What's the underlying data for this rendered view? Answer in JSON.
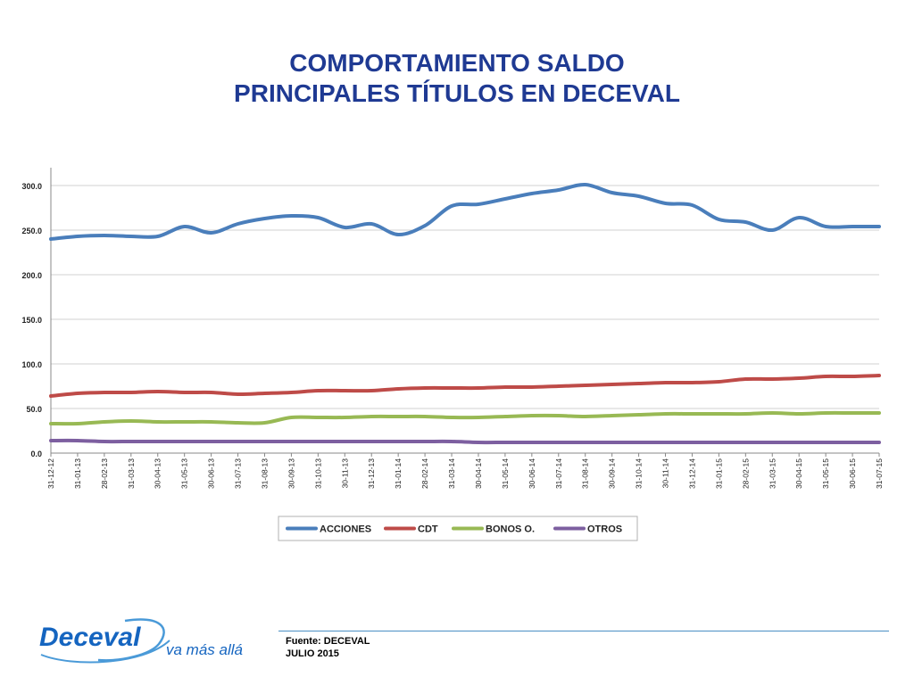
{
  "header": {
    "title_line1": "COMPORTAMIENTO SALDO",
    "title_line2": "PRINCIPALES TÍTULOS EN DECEVAL"
  },
  "footer": {
    "source": "Fuente: DECEVAL",
    "date": "JULIO 2015",
    "brand": "Deceval",
    "tagline": "va más allá"
  },
  "colors": {
    "title": "#1f3a93",
    "brand": "#1565c0",
    "accent": "#4a8fc4"
  },
  "chart_data": {
    "type": "line",
    "title": "",
    "xlabel": "",
    "ylabel": "",
    "ylim": [
      0,
      320
    ],
    "yticks": [
      0,
      50,
      100,
      150,
      200,
      250,
      300
    ],
    "ytick_labels": [
      "0.0",
      "50.0",
      "100.0",
      "150.0",
      "200.0",
      "250.0",
      "300.0"
    ],
    "grid": true,
    "legend": "bottom",
    "categories": [
      "31-12-12",
      "31-01-13",
      "28-02-13",
      "31-03-13",
      "30-04-13",
      "31-05-13",
      "30-06-13",
      "31-07-13",
      "31-08-13",
      "30-09-13",
      "31-10-13",
      "30-11-13",
      "31-12-13",
      "31-01-14",
      "28-02-14",
      "31-03-14",
      "30-04-14",
      "31-05-14",
      "30-06-14",
      "31-07-14",
      "31-08-14",
      "30-09-14",
      "31-10-14",
      "30-11-14",
      "31-12-14",
      "31-01-15",
      "28-02-15",
      "31-03-15",
      "30-04-15",
      "31-05-15",
      "30-06-15",
      "31-07-15"
    ],
    "series": [
      {
        "name": "ACCIONES",
        "color": "#4a7ebb",
        "values": [
          240,
          243,
          244,
          243,
          243,
          254,
          247,
          257,
          263,
          266,
          264,
          253,
          257,
          245,
          255,
          277,
          279,
          285,
          291,
          295,
          301,
          292,
          288,
          280,
          278,
          262,
          259,
          250,
          264,
          254,
          254,
          254
        ]
      },
      {
        "name": "CDT",
        "color": "#be4b48",
        "values": [
          64,
          67,
          68,
          68,
          69,
          68,
          68,
          66,
          67,
          68,
          70,
          70,
          70,
          72,
          73,
          73,
          73,
          74,
          74,
          75,
          76,
          77,
          78,
          79,
          79,
          80,
          83,
          83,
          84,
          86,
          86,
          87
        ]
      },
      {
        "name": "BONOS O.",
        "color": "#98b954",
        "values": [
          33,
          33,
          35,
          36,
          35,
          35,
          35,
          34,
          34,
          40,
          40,
          40,
          41,
          41,
          41,
          40,
          40,
          41,
          42,
          42,
          41,
          42,
          43,
          44,
          44,
          44,
          44,
          45,
          44,
          45,
          45,
          45
        ]
      },
      {
        "name": "OTROS",
        "color": "#7d5fa0",
        "values": [
          14,
          14,
          13,
          13,
          13,
          13,
          13,
          13,
          13,
          13,
          13,
          13,
          13,
          13,
          13,
          13,
          12,
          12,
          12,
          12,
          12,
          12,
          12,
          12,
          12,
          12,
          12,
          12,
          12,
          12,
          12,
          12
        ]
      }
    ]
  }
}
